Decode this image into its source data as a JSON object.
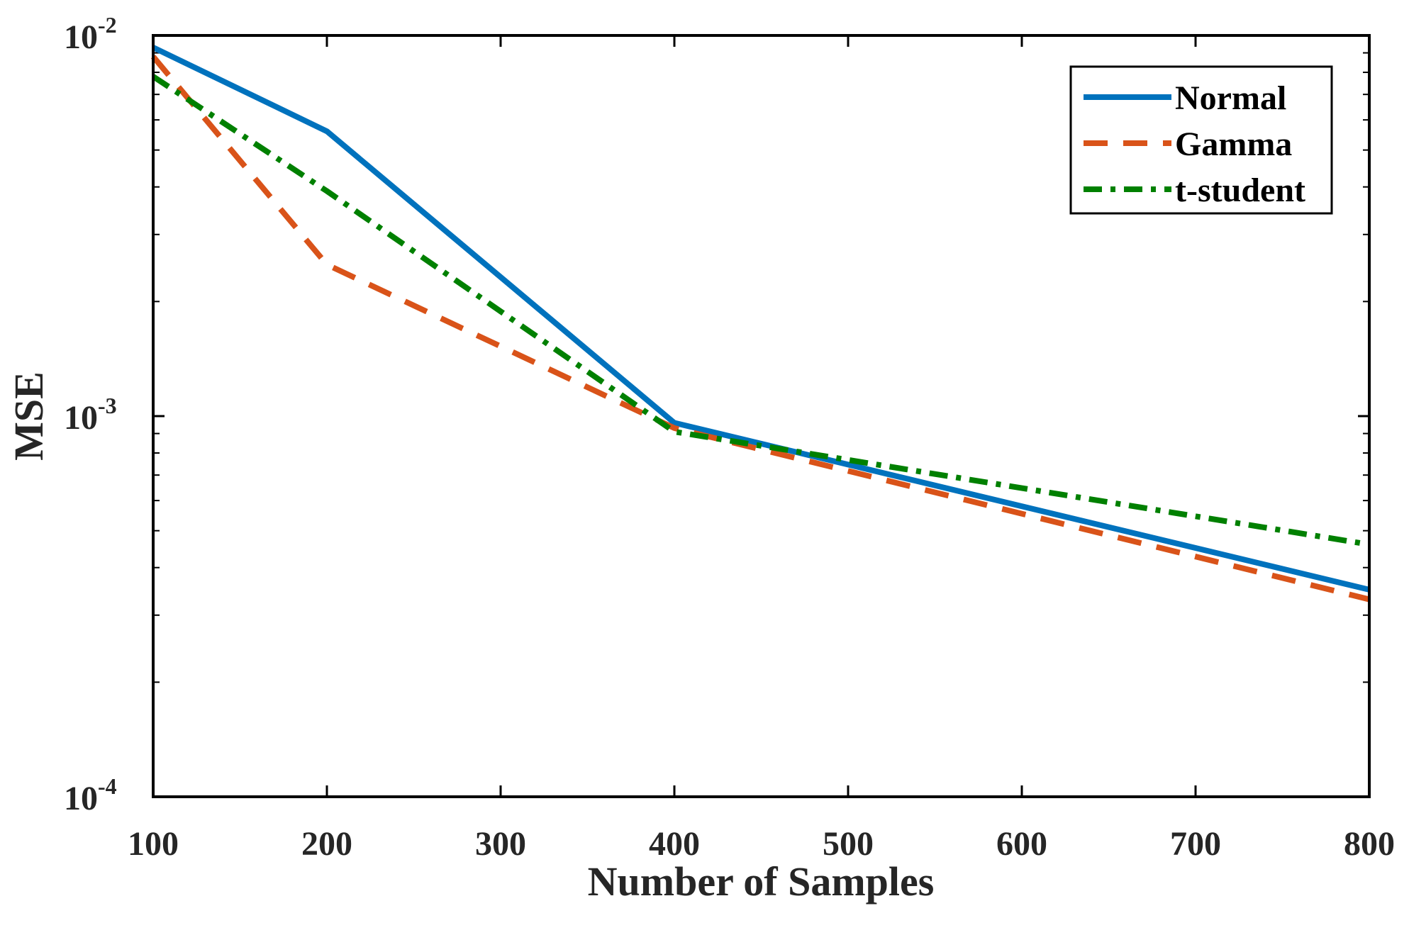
{
  "chart_data": {
    "type": "line",
    "title": "",
    "xlabel": "Number of Samples",
    "ylabel": "MSE",
    "xscale": "linear",
    "yscale": "log",
    "xlim": [
      100,
      800
    ],
    "ylim": [
      0.0001,
      0.01
    ],
    "xticks": [
      100,
      200,
      300,
      400,
      500,
      600,
      700,
      800
    ],
    "xtick_labels": [
      "100",
      "200",
      "300",
      "400",
      "500",
      "600",
      "700",
      "800"
    ],
    "yticks": [
      {
        "value": 0.0001,
        "base": "10",
        "exp": "-4"
      },
      {
        "value": 0.001,
        "base": "10",
        "exp": "-3"
      },
      {
        "value": 0.01,
        "base": "10",
        "exp": "-2"
      }
    ],
    "grid": false,
    "legend_position": "top-right",
    "series": [
      {
        "name": "Normal",
        "color": "#0072BD",
        "dash": "solid",
        "x": [
          100,
          200,
          400,
          800
        ],
        "y": [
          0.0093,
          0.0056,
          0.00096,
          0.00035
        ]
      },
      {
        "name": "Gamma",
        "color": "#D95319",
        "dash": "dashed",
        "x": [
          100,
          200,
          400,
          800
        ],
        "y": [
          0.0088,
          0.0025,
          0.00093,
          0.00033
        ]
      },
      {
        "name": "t-student",
        "color": "#008000",
        "dash": "dashdot",
        "x": [
          100,
          200,
          400,
          800
        ],
        "y": [
          0.0078,
          0.0039,
          0.00091,
          0.00046
        ]
      }
    ]
  }
}
